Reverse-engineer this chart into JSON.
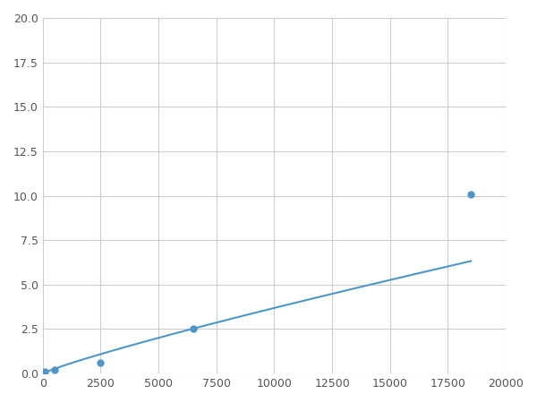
{
  "x_points": [
    100,
    500,
    2500,
    6500,
    18500
  ],
  "y_points": [
    0.1,
    0.2,
    0.6,
    2.5,
    10.1
  ],
  "line_color": "#4f96c8",
  "marker_color": "#4f96c8",
  "xlim": [
    0,
    20000
  ],
  "ylim": [
    0,
    20.0
  ],
  "xticks": [
    0,
    2500,
    5000,
    7500,
    10000,
    12500,
    15000,
    17500,
    20000
  ],
  "yticks": [
    0.0,
    2.5,
    5.0,
    7.5,
    10.0,
    12.5,
    15.0,
    17.5,
    20.0
  ],
  "grid_color": "#cccccc",
  "background_color": "#ffffff",
  "figsize": [
    6.0,
    4.5
  ],
  "dpi": 100
}
